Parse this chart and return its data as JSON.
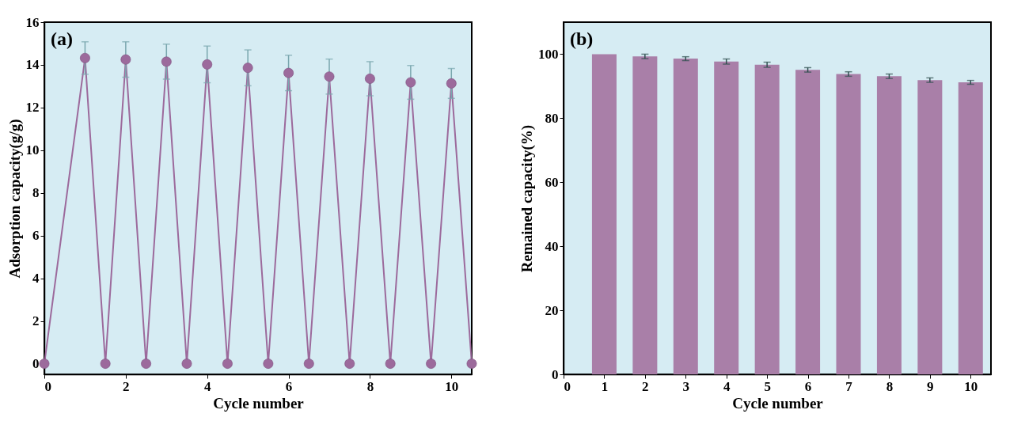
{
  "chart_data": [
    {
      "type": "line",
      "xlabel": "Cycle number",
      "ylabel": "Adsorption capacity(g/g)",
      "annotations": [
        "(a)"
      ],
      "xlim": [
        0,
        10.5
      ],
      "xticks": [
        0,
        2,
        4,
        6,
        8,
        10
      ],
      "ylim": [
        -0.5,
        16
      ],
      "yticks": [
        0,
        2,
        4,
        6,
        8,
        10,
        12,
        14,
        16
      ],
      "grid": false,
      "marker": "circle",
      "line_style": "solid",
      "x": [
        0,
        1,
        1.5,
        2,
        2.5,
        3,
        3.5,
        4,
        4.5,
        5,
        5.5,
        6,
        6.5,
        7,
        7.5,
        8,
        8.5,
        9,
        9.5,
        10,
        10.5
      ],
      "series": [
        {
          "color": "#9c6a9c",
          "values": [
            0,
            14.32,
            0,
            14.25,
            0,
            14.15,
            0,
            14.02,
            0,
            13.86,
            0,
            13.62,
            0,
            13.45,
            0,
            13.35,
            0,
            13.18,
            0,
            13.13,
            0
          ],
          "errors": [
            null,
            0.76,
            null,
            0.83,
            null,
            0.82,
            null,
            0.86,
            null,
            0.84,
            null,
            0.83,
            null,
            0.82,
            null,
            0.8,
            null,
            0.79,
            null,
            0.7,
            null
          ]
        }
      ]
    },
    {
      "type": "bar",
      "xlabel": "Cycle number",
      "ylabel": "Remained capacity(%)",
      "annotations": [
        "(b)"
      ],
      "xlim": [
        0,
        10.5
      ],
      "xticks": [
        0,
        1,
        2,
        3,
        4,
        5,
        6,
        7,
        8,
        9,
        10
      ],
      "ylim": [
        0,
        110
      ],
      "yticks": [
        0,
        20,
        40,
        60,
        80,
        100
      ],
      "grid": false,
      "x": [
        1,
        2,
        3,
        4,
        5,
        6,
        7,
        8,
        9,
        10
      ],
      "series": [
        {
          "color": "#a97fa8",
          "values": [
            100,
            99.3,
            98.6,
            97.7,
            96.7,
            95.1,
            93.8,
            93.1,
            91.9,
            91.2
          ],
          "errors": [
            null,
            0.7,
            0.6,
            0.8,
            0.8,
            0.7,
            0.7,
            0.7,
            0.7,
            0.6
          ]
        }
      ]
    }
  ]
}
